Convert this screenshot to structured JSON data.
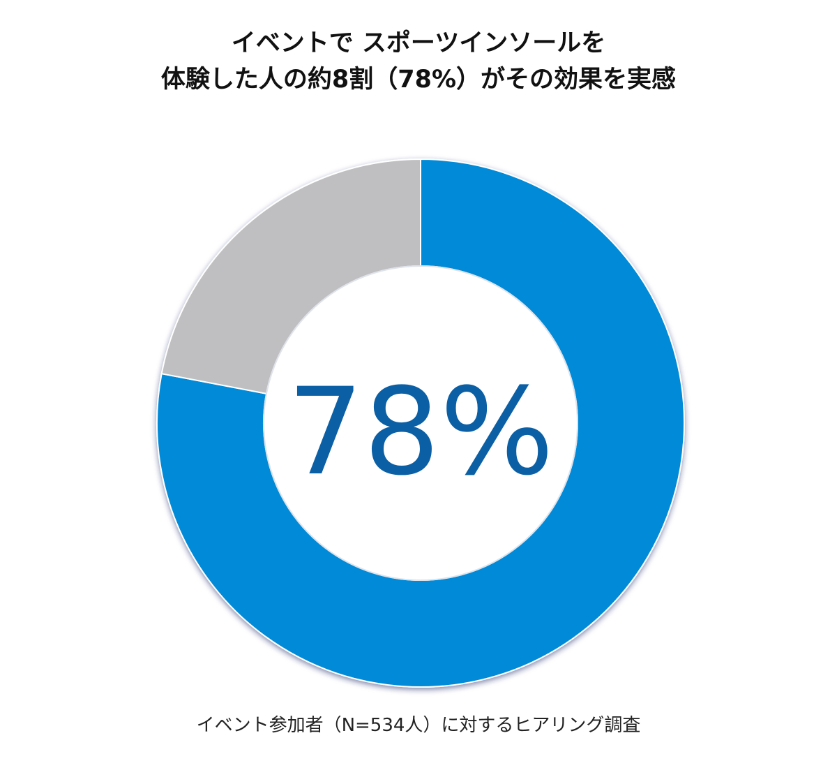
{
  "title": {
    "line1": "イベントで スポーツインソールを",
    "line2": "体験した人の約8割（78%）がその効果を実感"
  },
  "center_label": "78%",
  "footnote": "イベント参加者（N=534人）に対するヒアリング調査",
  "colors": {
    "accent": "#008ad8",
    "remainder": "#bfbfc2",
    "center_text": "#0b5fa5"
  },
  "chart_data": {
    "type": "pie",
    "variant": "donut",
    "values": [
      78,
      22
    ],
    "colors": [
      "#008ad8",
      "#bfbfc2"
    ],
    "start": "12 o'clock",
    "direction": "clockwise",
    "center_label": "78%"
  }
}
